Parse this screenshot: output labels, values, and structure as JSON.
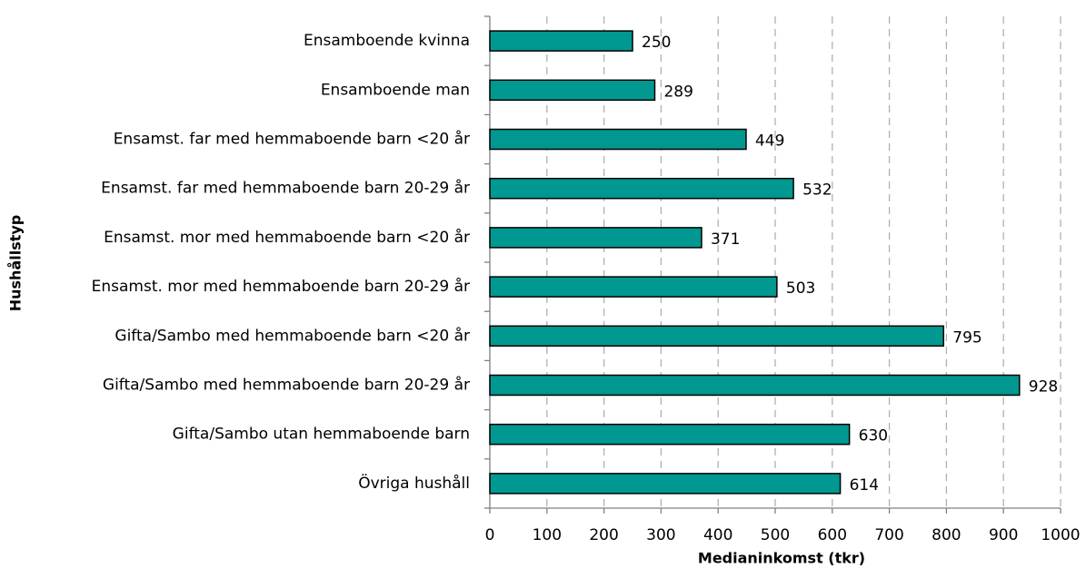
{
  "chart_data": {
    "type": "bar",
    "orientation": "horizontal",
    "categories": [
      "Ensamboende kvinna",
      "Ensamboende man",
      "Ensamst. far med hemmaboende barn <20 år",
      "Ensamst. far med hemmaboende barn 20-29 år",
      "Ensamst. mor med hemmaboende barn <20 år",
      "Ensamst. mor med hemmaboende barn 20-29 år",
      "Gifta/Sambo med hemmaboende barn <20 år",
      "Gifta/Sambo med hemmaboende barn 20-29 år",
      "Gifta/Sambo utan hemmaboende barn",
      "Övriga hushåll"
    ],
    "values": [
      250,
      289,
      449,
      532,
      371,
      503,
      795,
      928,
      630,
      614
    ],
    "color": "#009890",
    "x_label": "Medianinkomst (tkr)",
    "y_label": "Hushållstyp",
    "xlim": [
      0,
      1000
    ],
    "xticks": [
      0,
      100,
      200,
      300,
      400,
      500,
      600,
      700,
      800,
      900,
      1000
    ],
    "grid": true
  }
}
